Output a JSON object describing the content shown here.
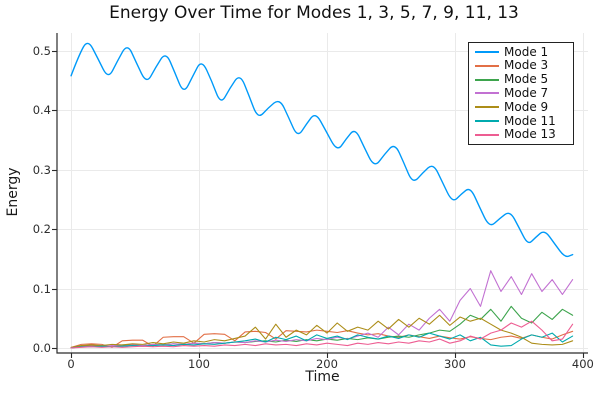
{
  "title": "Energy Over Time for Modes 1, 3, 5, 7, 9, 11, 13",
  "chart_data": {
    "type": "line",
    "title": "Energy Over Time for Modes 1, 3, 5, 7, 9, 11, 13",
    "xlabel": "Time",
    "ylabel": "Energy",
    "xlim": [
      -11,
      404
    ],
    "ylim": [
      -0.0085,
      0.53
    ],
    "xticks": [
      0,
      100,
      200,
      300,
      400
    ],
    "xtick_labels": [
      "0",
      "100",
      "200",
      "300",
      "400"
    ],
    "yticks": [
      0.0,
      0.1,
      0.2,
      0.3,
      0.4,
      0.5
    ],
    "ytick_labels": [
      "0.0",
      "0.1",
      "0.2",
      "0.3",
      "0.4",
      "0.5"
    ],
    "grid": true,
    "grid_color": "#eaeaea",
    "axis_color": "#2b2b2b",
    "legend_position": "top-right",
    "x_default": [
      0,
      8,
      16,
      24,
      32,
      40,
      48,
      56,
      64,
      72,
      80,
      88,
      96,
      104,
      112,
      120,
      128,
      136,
      144,
      152,
      160,
      168,
      176,
      184,
      192,
      200,
      208,
      216,
      224,
      232,
      240,
      248,
      256,
      264,
      272,
      280,
      288,
      296,
      304,
      312,
      320,
      328,
      336,
      344,
      352,
      360,
      368,
      376,
      384,
      392
    ],
    "series": [
      {
        "name": "Mode 1",
        "color": "#009af9",
        "width": 1.4,
        "smooth": true,
        "x": [
          0,
          6,
          13,
          21,
          29,
          36,
          44,
          51,
          59,
          66,
          74,
          81,
          88,
          95,
          102,
          110,
          117,
          124,
          132,
          139,
          146,
          154,
          163,
          170,
          177,
          184,
          191,
          199,
          208,
          215,
          222,
          229,
          237,
          245,
          253,
          260,
          267,
          275,
          283,
          290,
          298,
          305,
          312,
          319,
          327,
          335,
          343,
          350,
          357,
          363,
          370,
          378,
          386,
          392
        ],
        "y": [
          0.458,
          0.492,
          0.52,
          0.487,
          0.452,
          0.482,
          0.513,
          0.48,
          0.444,
          0.472,
          0.499,
          0.464,
          0.427,
          0.457,
          0.486,
          0.449,
          0.409,
          0.437,
          0.462,
          0.425,
          0.385,
          0.404,
          0.42,
          0.388,
          0.354,
          0.377,
          0.397,
          0.366,
          0.33,
          0.352,
          0.37,
          0.338,
          0.303,
          0.326,
          0.345,
          0.312,
          0.276,
          0.295,
          0.311,
          0.28,
          0.244,
          0.259,
          0.271,
          0.238,
          0.202,
          0.218,
          0.231,
          0.203,
          0.173,
          0.186,
          0.199,
          0.175,
          0.152,
          0.157
        ]
      },
      {
        "name": "Mode 3",
        "color": "#e26f46",
        "width": 1.1,
        "smooth": false,
        "y": [
          0.001,
          0.006,
          0.007,
          0.006,
          0.001,
          0.012,
          0.013,
          0.013,
          0.003,
          0.018,
          0.019,
          0.019,
          0.008,
          0.023,
          0.024,
          0.023,
          0.012,
          0.027,
          0.028,
          0.026,
          0.015,
          0.029,
          0.028,
          0.027,
          0.03,
          0.028,
          0.026,
          0.029,
          0.025,
          0.022,
          0.024,
          0.02,
          0.018,
          0.022,
          0.019,
          0.016,
          0.02,
          0.017,
          0.015,
          0.019,
          0.016,
          0.014,
          0.018,
          0.02,
          0.016,
          0.022,
          0.018,
          0.015,
          0.022,
          0.028
        ]
      },
      {
        "name": "Mode 5",
        "color": "#3da44d",
        "width": 1.1,
        "smooth": false,
        "y": [
          0.0,
          0.003,
          0.004,
          0.004,
          0.003,
          0.005,
          0.005,
          0.004,
          0.006,
          0.005,
          0.007,
          0.006,
          0.008,
          0.007,
          0.009,
          0.008,
          0.01,
          0.009,
          0.011,
          0.012,
          0.01,
          0.013,
          0.011,
          0.014,
          0.012,
          0.015,
          0.013,
          0.016,
          0.014,
          0.017,
          0.015,
          0.018,
          0.02,
          0.018,
          0.022,
          0.025,
          0.03,
          0.028,
          0.04,
          0.055,
          0.048,
          0.065,
          0.045,
          0.07,
          0.05,
          0.042,
          0.06,
          0.048,
          0.065,
          0.055
        ]
      },
      {
        "name": "Mode 7",
        "color": "#c271d2",
        "width": 1.1,
        "smooth": false,
        "y": [
          0.0,
          0.002,
          0.003,
          0.002,
          0.004,
          0.003,
          0.005,
          0.004,
          0.006,
          0.005,
          0.007,
          0.006,
          0.008,
          0.007,
          0.009,
          0.008,
          0.01,
          0.009,
          0.012,
          0.01,
          0.013,
          0.011,
          0.014,
          0.012,
          0.016,
          0.014,
          0.018,
          0.015,
          0.02,
          0.025,
          0.018,
          0.035,
          0.022,
          0.04,
          0.03,
          0.05,
          0.065,
          0.045,
          0.08,
          0.1,
          0.07,
          0.13,
          0.095,
          0.12,
          0.09,
          0.125,
          0.095,
          0.115,
          0.09,
          0.115
        ]
      },
      {
        "name": "Mode 9",
        "color": "#ac8d18",
        "width": 1.1,
        "smooth": false,
        "y": [
          0.001,
          0.004,
          0.005,
          0.004,
          0.006,
          0.005,
          0.007,
          0.006,
          0.009,
          0.007,
          0.01,
          0.008,
          0.012,
          0.01,
          0.014,
          0.012,
          0.016,
          0.02,
          0.035,
          0.015,
          0.04,
          0.018,
          0.03,
          0.022,
          0.038,
          0.025,
          0.042,
          0.028,
          0.035,
          0.03,
          0.045,
          0.032,
          0.048,
          0.035,
          0.05,
          0.04,
          0.055,
          0.038,
          0.052,
          0.045,
          0.05,
          0.04,
          0.03,
          0.025,
          0.018,
          0.008,
          0.006,
          0.005,
          0.006,
          0.012
        ]
      },
      {
        "name": "Mode 11",
        "color": "#00aaae",
        "width": 1.1,
        "smooth": false,
        "y": [
          0.0,
          0.002,
          0.002,
          0.003,
          0.002,
          0.003,
          0.004,
          0.003,
          0.004,
          0.005,
          0.004,
          0.006,
          0.005,
          0.007,
          0.006,
          0.008,
          0.01,
          0.012,
          0.015,
          0.01,
          0.018,
          0.014,
          0.02,
          0.012,
          0.022,
          0.016,
          0.02,
          0.014,
          0.022,
          0.018,
          0.015,
          0.02,
          0.016,
          0.022,
          0.018,
          0.025,
          0.02,
          0.015,
          0.022,
          0.012,
          0.018,
          0.005,
          0.003,
          0.004,
          0.015,
          0.022,
          0.018,
          0.025,
          0.01,
          0.02
        ]
      },
      {
        "name": "Mode 13",
        "color": "#ed5d92",
        "width": 1.1,
        "smooth": false,
        "y": [
          0.0,
          0.001,
          0.002,
          0.001,
          0.002,
          0.001,
          0.002,
          0.003,
          0.002,
          0.003,
          0.002,
          0.004,
          0.003,
          0.004,
          0.003,
          0.005,
          0.004,
          0.006,
          0.004,
          0.007,
          0.005,
          0.006,
          0.004,
          0.007,
          0.005,
          0.008,
          0.006,
          0.004,
          0.008,
          0.006,
          0.009,
          0.007,
          0.01,
          0.008,
          0.012,
          0.01,
          0.015,
          0.008,
          0.012,
          0.02,
          0.015,
          0.025,
          0.03,
          0.042,
          0.035,
          0.045,
          0.03,
          0.012,
          0.015,
          0.04
        ]
      }
    ]
  }
}
